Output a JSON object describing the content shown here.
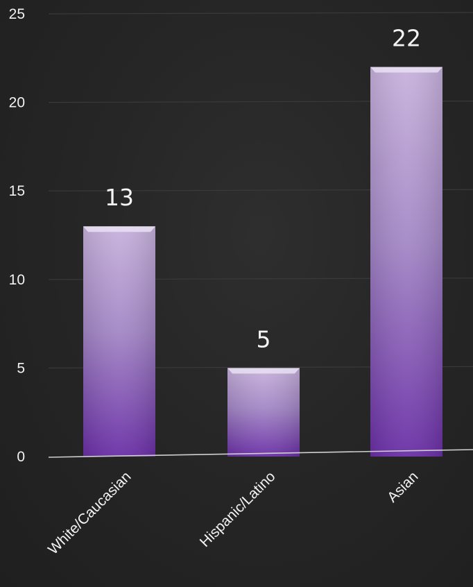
{
  "chart_data": {
    "type": "bar",
    "title": "",
    "xlabel": "",
    "ylabel": "",
    "categories": [
      "White/Caucasian",
      "Hispanic/Latino",
      "Asian"
    ],
    "values": [
      13,
      5,
      22
    ],
    "data_labels": [
      "13",
      "5",
      "22"
    ],
    "ylim": [
      0,
      25
    ],
    "yticks": [
      0,
      5,
      10,
      15,
      20,
      25
    ],
    "ytick_labels": [
      "0",
      "5",
      "10",
      "15",
      "20",
      "25"
    ],
    "grid": true,
    "legend": "none",
    "colors": {
      "bar_top": "#c7b2dc",
      "bar_bottom": "#6a2fa6",
      "bar_cap": "#e9e0f2",
      "grid": "#3a3a3a",
      "axis": "#cfcfcf",
      "text": "#f2f2f2"
    }
  }
}
